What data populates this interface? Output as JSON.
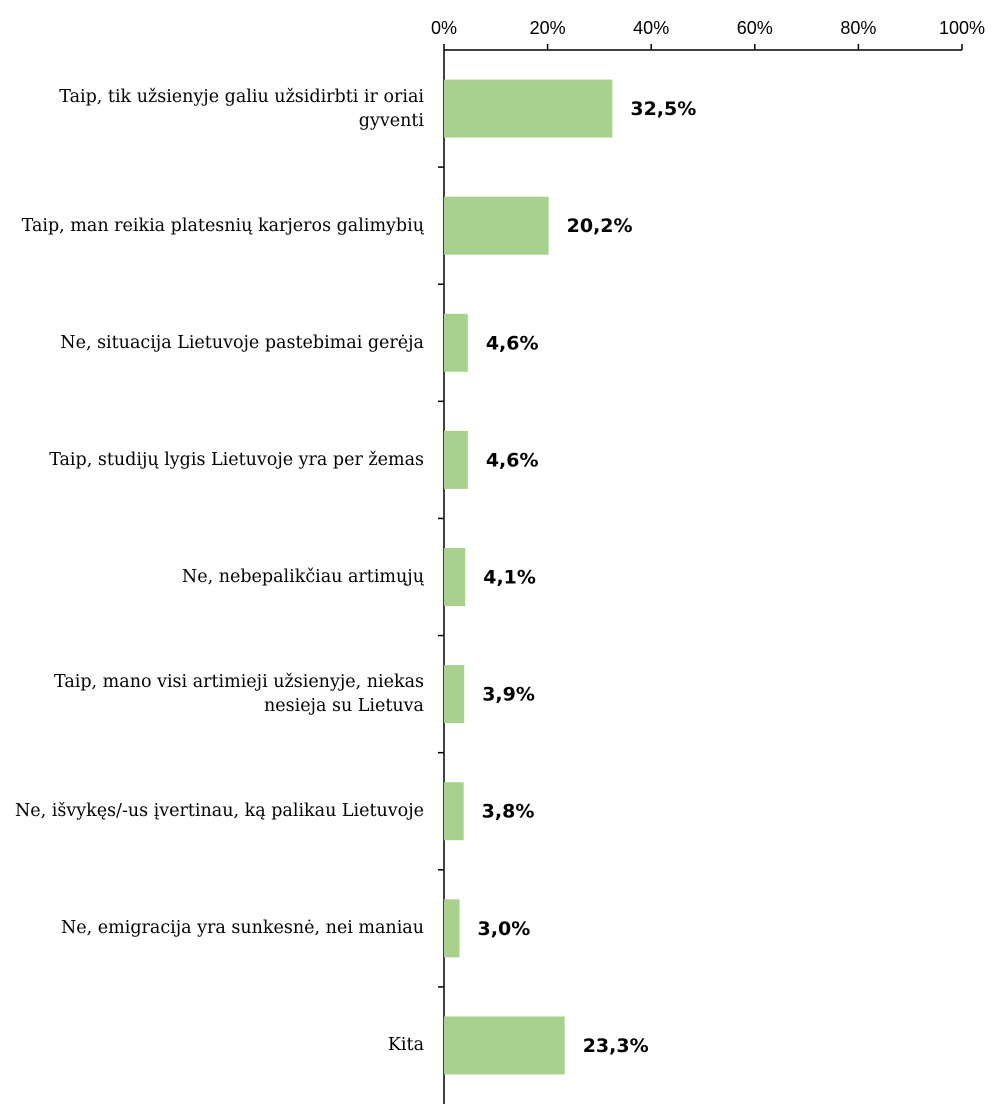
{
  "chart_data": {
    "type": "bar",
    "orientation": "horizontal",
    "categories": [
      "Taip, tik užsienyje galiu užsidirbti ir oriai gyventi",
      "Taip, man reikia platesnių karjeros galimybių",
      "Ne, situacija Lietuvoje pastebimai gerėja",
      "Taip, studijų lygis Lietuvoje yra per žemas",
      "Ne, nebepalikčiau artimųjų",
      "Taip, mano visi artimieji užsienyje, niekas nesieja su Lietuva",
      "Ne, išvykęs/-us įvertinau, ką palikau Lietuvoje",
      "Ne, emigracija yra sunkesnė, nei maniau",
      "Kita"
    ],
    "values": [
      32.5,
      20.2,
      4.6,
      4.6,
      4.1,
      3.9,
      3.8,
      3.0,
      23.3
    ],
    "value_labels": [
      "32,5%",
      "20,2%",
      "4,6%",
      "4,6%",
      "4,1%",
      "3,9%",
      "3,8%",
      "3,0%",
      "23,3%"
    ],
    "color": "#a9d18e",
    "xlim": [
      0,
      100
    ],
    "xticks": [
      {
        "value": 0,
        "label": "0%"
      },
      {
        "value": 20,
        "label": "20%"
      },
      {
        "value": 40,
        "label": "40%"
      },
      {
        "value": 60,
        "label": "60%"
      },
      {
        "value": 80,
        "label": "80%"
      },
      {
        "value": 100,
        "label": "100%"
      }
    ],
    "grid": false
  }
}
